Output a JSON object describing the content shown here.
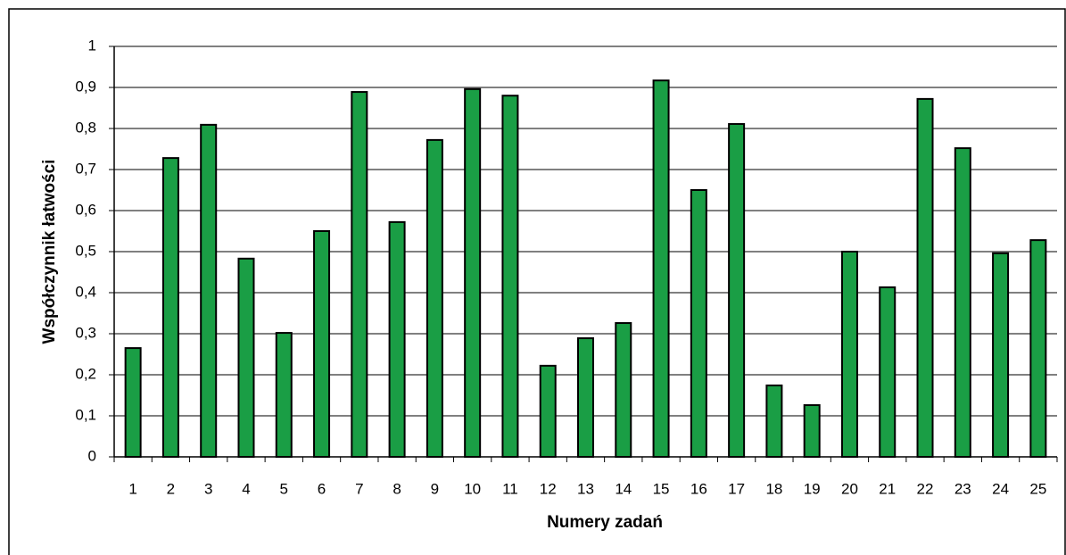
{
  "chart_data": {
    "type": "bar",
    "xlabel": "Numery zadań",
    "ylabel": "Współczynnik łatwości",
    "categories": [
      "1",
      "2",
      "3",
      "4",
      "5",
      "6",
      "7",
      "8",
      "9",
      "10",
      "11",
      "12",
      "13",
      "14",
      "15",
      "16",
      "17",
      "18",
      "19",
      "20",
      "21",
      "22",
      "23",
      "24",
      "25"
    ],
    "values": [
      0.265,
      0.728,
      0.809,
      0.483,
      0.302,
      0.55,
      0.889,
      0.572,
      0.772,
      0.896,
      0.88,
      0.222,
      0.289,
      0.326,
      0.917,
      0.65,
      0.811,
      0.174,
      0.126,
      0.5,
      0.413,
      0.872,
      0.752,
      0.496,
      0.528
    ],
    "color": "#1a9e45",
    "ylim": [
      0,
      1
    ],
    "yticks": [
      0,
      {
        "value": 0.1,
        "label": "0,1"
      },
      {
        "value": 0.2,
        "label": "0,2"
      },
      {
        "value": 0.3,
        "label": "0,3"
      },
      {
        "value": 0.4,
        "label": "0,4"
      },
      {
        "value": 0.5,
        "label": "0,5"
      },
      {
        "value": 0.6,
        "label": "0,6"
      },
      {
        "value": 0.7,
        "label": "0,7"
      },
      {
        "value": 0.8,
        "label": "0,8"
      },
      {
        "value": 0.9,
        "label": "0,9"
      },
      1
    ],
    "grid": true
  }
}
